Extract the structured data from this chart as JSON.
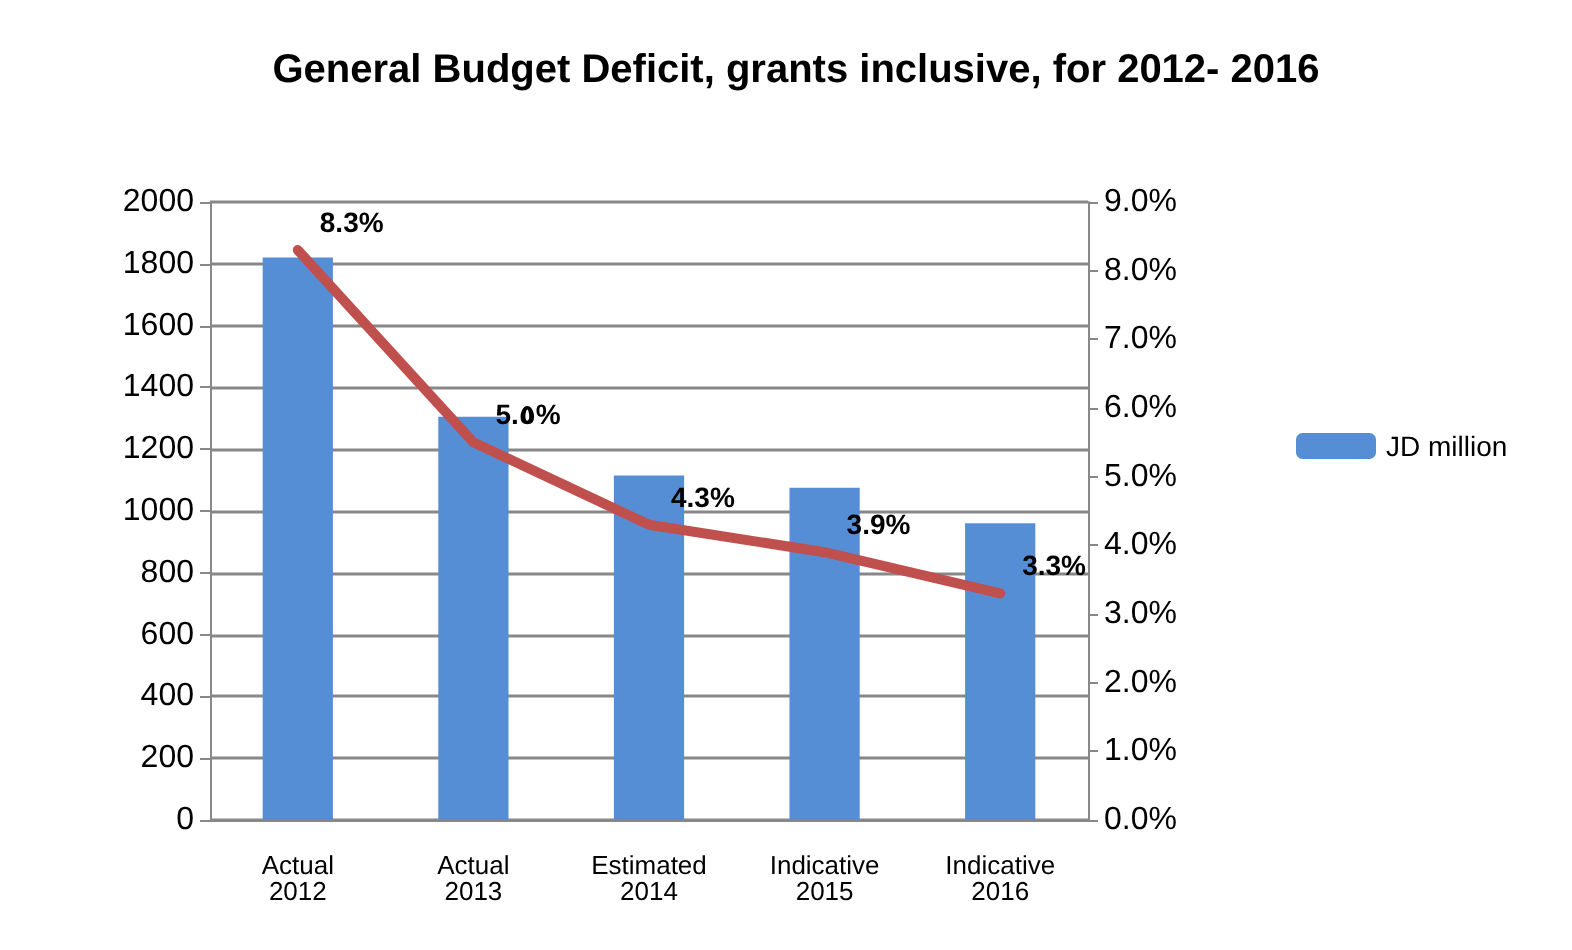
{
  "chart_data": {
    "type": "bar",
    "title": "General Budget Deficit, grants inclusive, for 2012- 2016",
    "categories": [
      "Actual\n2012",
      "Actual\n2013",
      "Estimated\n2014",
      "Indicative\n2015",
      "Indicative\n2016"
    ],
    "series": [
      {
        "name": "JD million",
        "color": "#558ed5",
        "values": [
          1820,
          1305,
          1115,
          1075,
          960
        ]
      },
      {
        "type": "line",
        "axis": "y2",
        "color": "#c0504d",
        "values": [
          8.3,
          5.5,
          4.3,
          3.9,
          3.3
        ],
        "value_labels": [
          "8.3%",
          "5.٥%",
          "4.3%",
          "3.9%",
          "3.3%"
        ]
      }
    ],
    "ylim": [
      0,
      2000
    ],
    "yticks": [
      0,
      200,
      400,
      600,
      800,
      1000,
      1200,
      1400,
      1600,
      1800,
      2000
    ],
    "y2lim": [
      0,
      9
    ],
    "y2ticks": [
      {
        "value": 0,
        "label": "0.0%"
      },
      {
        "value": 1,
        "label": "1.0%"
      },
      {
        "value": 2,
        "label": "2.0%"
      },
      {
        "value": 3,
        "label": "3.0%"
      },
      {
        "value": 4,
        "label": "4.0%"
      },
      {
        "value": 5,
        "label": "5.0%"
      },
      {
        "value": 6,
        "label": "6.0%"
      },
      {
        "value": 7,
        "label": "7.0%"
      },
      {
        "value": 8,
        "label": "8.0%"
      },
      {
        "value": 9,
        "label": "9.0%"
      }
    ],
    "grid": "y",
    "legend": "right",
    "marker": "none",
    "line_style": "solid"
  }
}
